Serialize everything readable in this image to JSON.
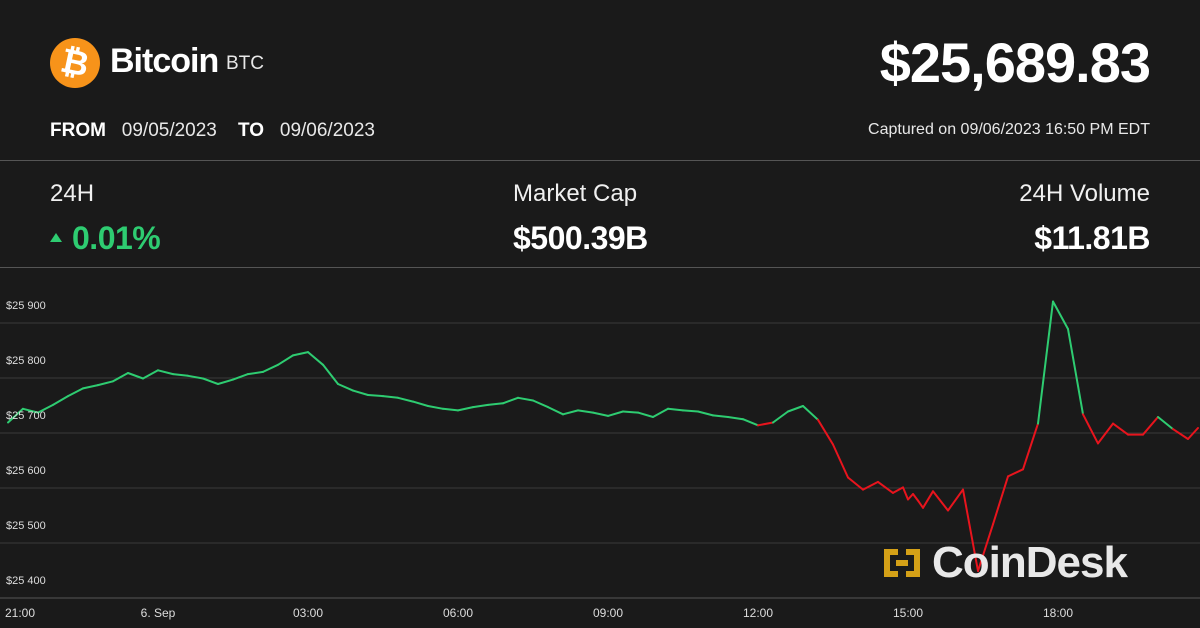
{
  "header": {
    "coin_name": "Bitcoin",
    "coin_symbol": "BTC",
    "logo_glyph": "₿",
    "price": "$25,689.83",
    "from_label": "FROM",
    "from_date": "09/05/2023",
    "to_label": "TO",
    "to_date": "09/06/2023",
    "captured": "Captured on 09/06/2023 16:50 PM EDT"
  },
  "stats": {
    "change_label": "24H",
    "change_value": "0.01%",
    "market_cap_label": "Market Cap",
    "market_cap_value": "$500.39B",
    "volume_label": "24H Volume",
    "volume_value": "$11.81B"
  },
  "watermark": {
    "text": "CoinDesk",
    "icon": "coindesk-logo-icon"
  },
  "colors": {
    "up": "#2ecc71",
    "down": "#e8141d",
    "brand": "#f7931a",
    "gold": "#d4a017"
  },
  "chart_data": {
    "type": "line",
    "ylim": [
      25380,
      25930
    ],
    "yticks": [
      25400,
      25500,
      25600,
      25700,
      25800,
      25900
    ],
    "ytick_labels": [
      "$25 400",
      "$25 500",
      "$25 600",
      "$25 700",
      "$25 800",
      "$25 900"
    ],
    "xlim": [
      0,
      23.8
    ],
    "xticks": [
      0,
      3,
      6,
      9,
      12,
      15,
      18,
      21
    ],
    "xtick_labels": [
      "21:00",
      "6. Sep",
      "03:00",
      "06:00",
      "09:00",
      "12:00",
      "15:00",
      "18:00"
    ],
    "grid": true,
    "reference_value": 25689,
    "series": [
      {
        "x": [
          0,
          0.3,
          0.6,
          0.9,
          1.2,
          1.5,
          1.8,
          2.1,
          2.4,
          2.7,
          3.0,
          3.3,
          3.6,
          3.9,
          4.2,
          4.5,
          4.8,
          5.1,
          5.4,
          5.7,
          6.0,
          6.3,
          6.6,
          6.9,
          7.2,
          7.5,
          7.8,
          8.1,
          8.4,
          8.7,
          9.0,
          9.3,
          9.6,
          9.9,
          10.2,
          10.5,
          10.8,
          11.1,
          11.4,
          11.7,
          12.0,
          12.3,
          12.6,
          12.9,
          13.2,
          13.5,
          13.8,
          14.1,
          14.4,
          14.7,
          15.0,
          15.3,
          15.6,
          15.9,
          16.2,
          16.5,
          16.8,
          17.1,
          17.4,
          17.7,
          17.9,
          18.0,
          18.1,
          18.2,
          18.3,
          18.5,
          18.8,
          19.1,
          19.4,
          19.7,
          20.0,
          20.3,
          20.6,
          20.9,
          21.2,
          21.5,
          21.8,
          22.1,
          22.4,
          22.7,
          23.0,
          23.3,
          23.6,
          23.8
        ],
        "y": [
          25690,
          25715,
          25708,
          25722,
          25738,
          25752,
          25758,
          25765,
          25780,
          25770,
          25785,
          25778,
          25775,
          25770,
          25760,
          25768,
          25778,
          25782,
          25795,
          25812,
          25818,
          25795,
          25760,
          25748,
          25740,
          25738,
          25735,
          25728,
          25720,
          25715,
          25712,
          25718,
          25722,
          25725,
          25735,
          25730,
          25718,
          25705,
          25712,
          25708,
          25702,
          25710,
          25708,
          25700,
          25715,
          25712,
          25710,
          25703,
          25700,
          25696,
          25685,
          25690,
          25710,
          25720,
          25695,
          25650,
          25590,
          25568,
          25582,
          25562,
          25572,
          25550,
          25560,
          25548,
          25535,
          25565,
          25530,
          25568,
          25420,
          25505,
          25592,
          25605,
          25688,
          25910,
          25860,
          25705,
          25652,
          25688,
          25668,
          25668,
          25700,
          25678,
          25660,
          25680
        ]
      }
    ]
  }
}
